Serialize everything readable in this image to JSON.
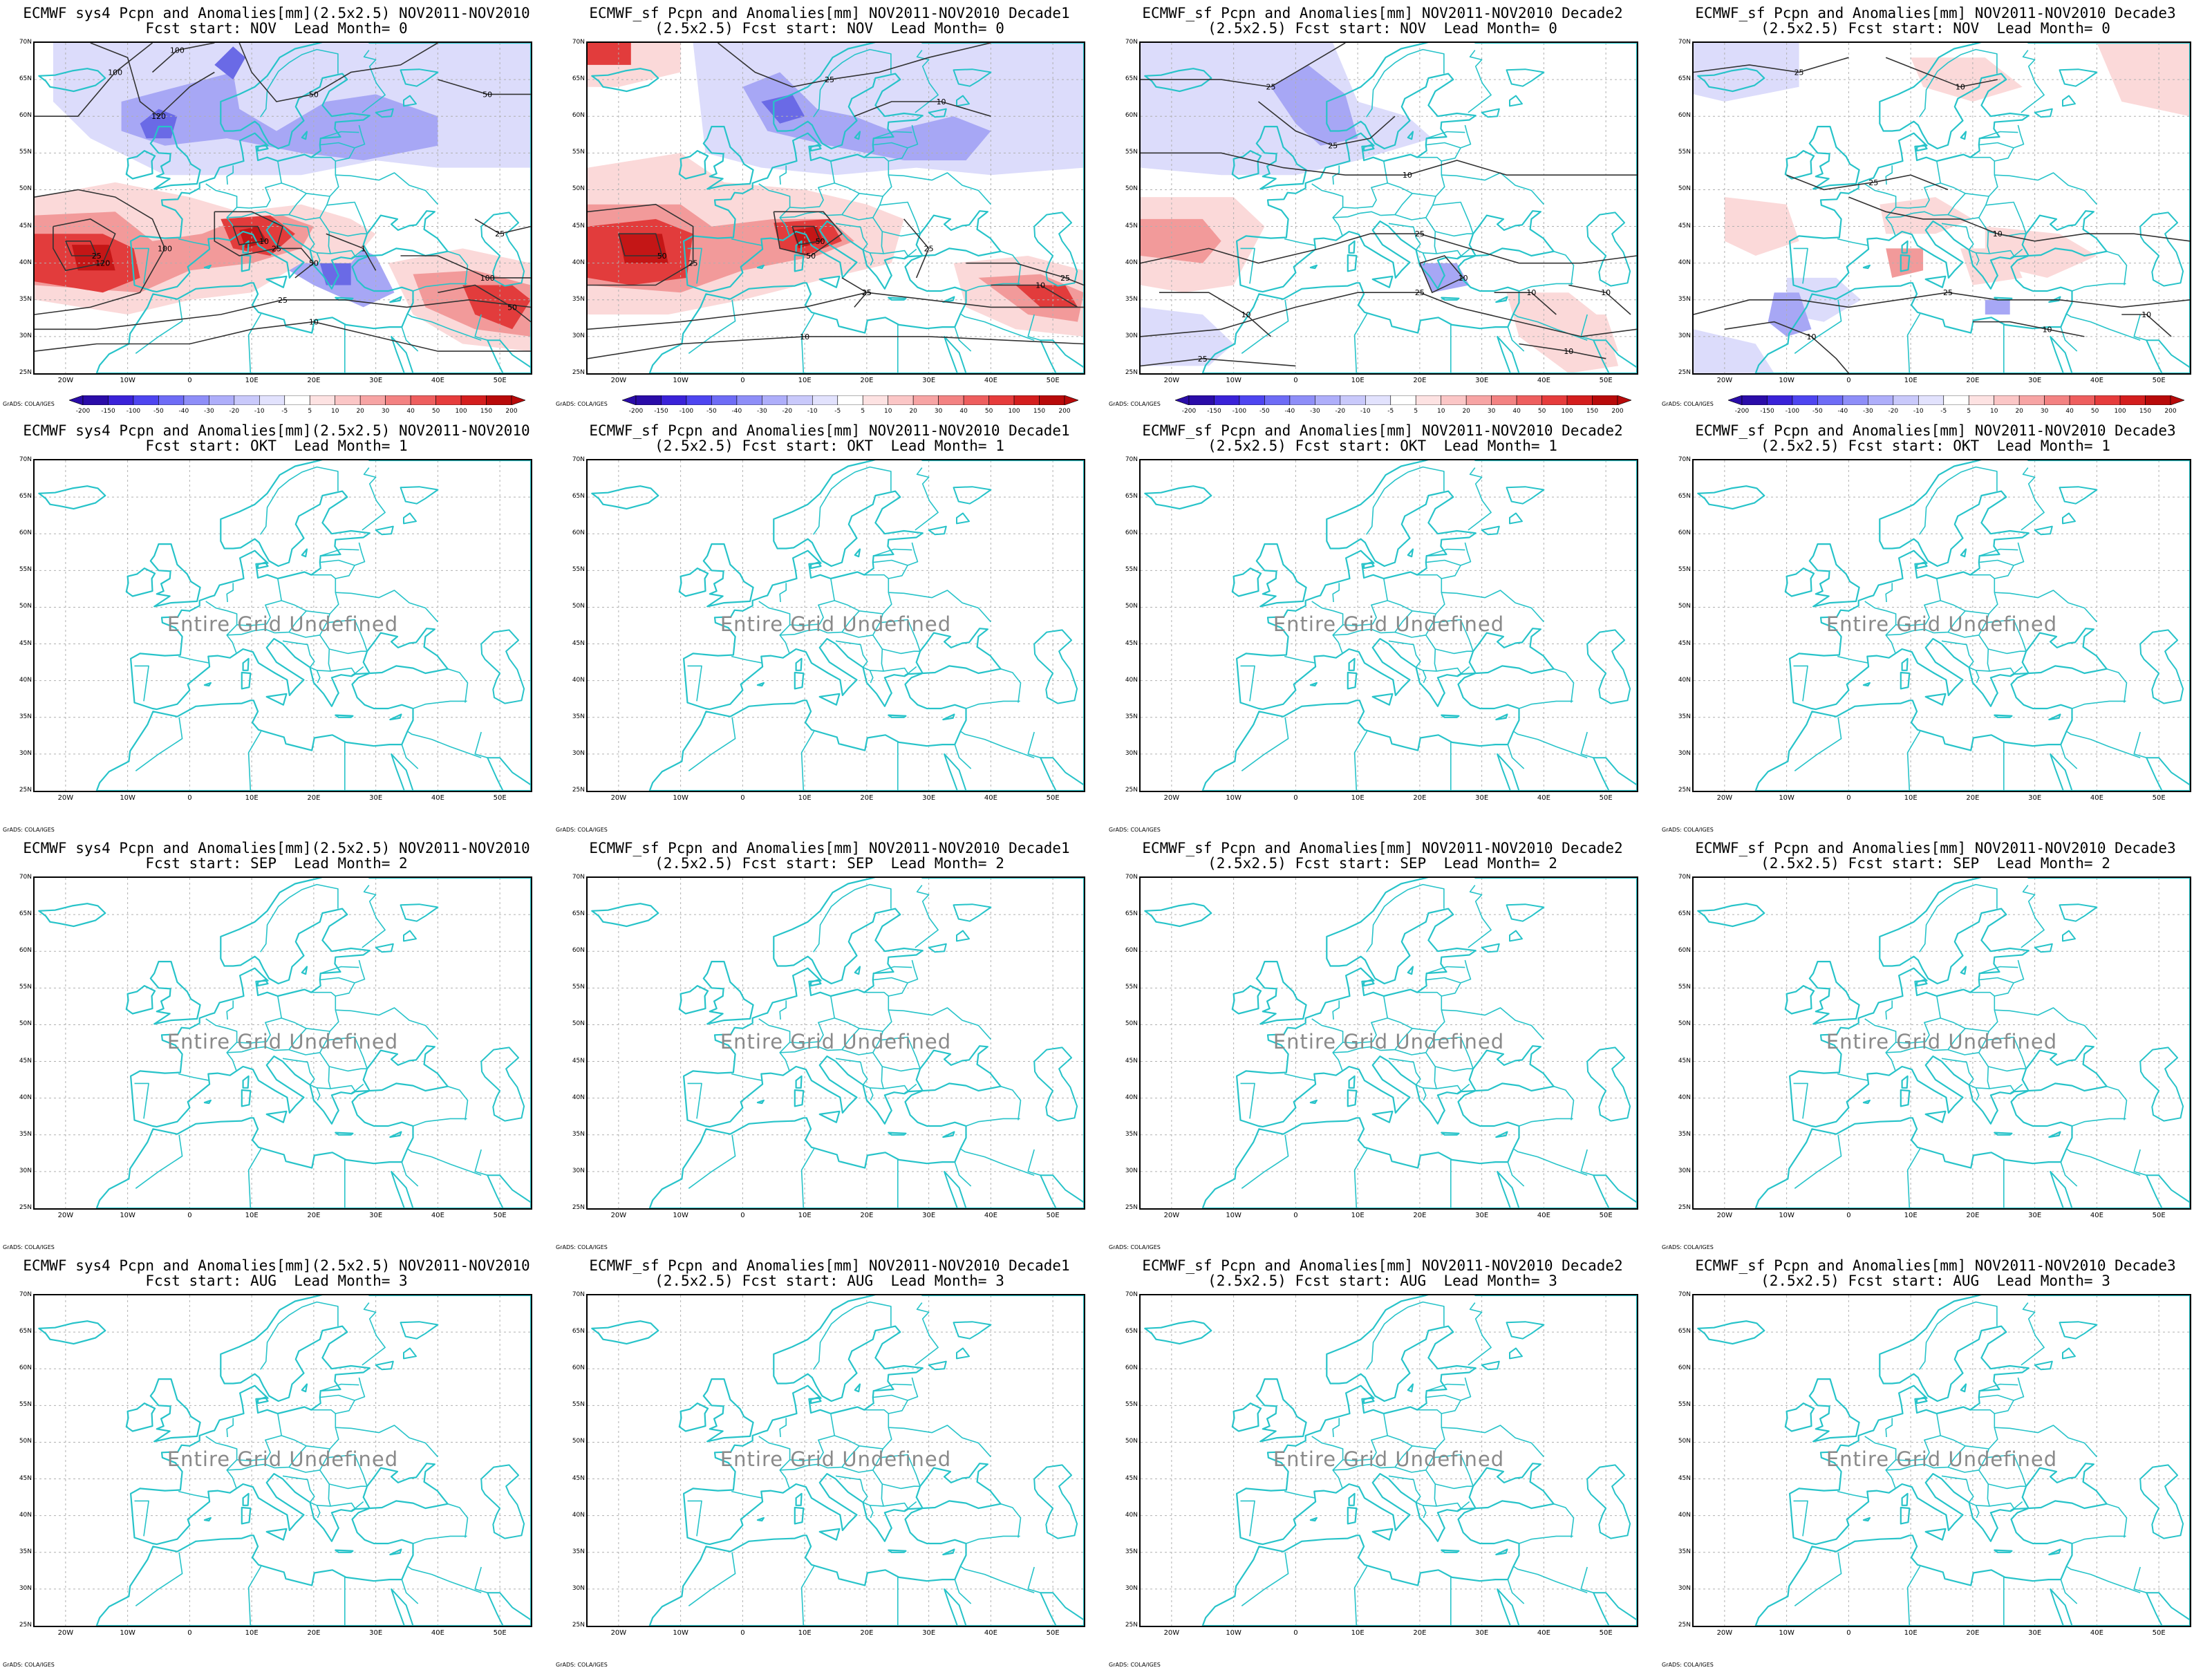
{
  "undefined_text": "Entire Grid Undefined",
  "credit": "GrADS: COLA/IGES",
  "lat_labels": [
    "70N",
    "65N",
    "60N",
    "55N",
    "50N",
    "45N",
    "40N",
    "35N",
    "30N",
    "25N"
  ],
  "lon_labels": [
    "20W",
    "10W",
    "0",
    "10E",
    "20E",
    "30E",
    "40E",
    "50E"
  ],
  "colorbar": {
    "levels": [
      "-200",
      "-150",
      "-100",
      "-50",
      "-40",
      "-30",
      "-20",
      "-10",
      "-5",
      "5",
      "10",
      "20",
      "30",
      "40",
      "50",
      "100",
      "150",
      "200"
    ],
    "colors": [
      "#2a0ca8",
      "#3a22d8",
      "#4e45f0",
      "#6e6cf6",
      "#8e8ef8",
      "#aeaefa",
      "#c9c9fb",
      "#e2e2fd",
      "#ffffff",
      "#fde2e2",
      "#fbc6c6",
      "#f7a4a4",
      "#f38282",
      "#ee5e5e",
      "#e63c3c",
      "#d41e1e",
      "#b80a0a"
    ]
  },
  "colors": {
    "coast": "#27c3c9",
    "grid": "#b0b0b0",
    "contour": "#333333",
    "neg_light": "#dcdcfb",
    "neg_mid": "#a7a7f5",
    "neg_strong": "#6a6ae6",
    "pos_light": "#fbd9d9",
    "pos_mid": "#f29a9a",
    "pos_strong": "#e23c3c",
    "pos_deep": "#c41616"
  },
  "panels": [
    {
      "line1": "ECMWF sys4 Pcpn and Anomalies[mm](2.5x2.5) NOV2011-NOV2010",
      "line2": "Fcst start: NOV  Lead Month= 0",
      "defined": true,
      "variant": 0,
      "contour_labels": [
        "100",
        "120",
        "100",
        "50",
        "50",
        "100",
        "120",
        "25",
        "25",
        "10",
        "50",
        "1",
        "25",
        "10",
        "100",
        "50",
        "25"
      ]
    },
    {
      "line1": "ECMWF_sf Pcpn and Anomalies[mm] NOV2011-NOV2010 Decade1",
      "line2": "(2.5x2.5) Fcst start: NOV  Lead Month= 0",
      "defined": true,
      "variant": 1,
      "contour_labels": [
        "25",
        "10",
        "25",
        "50",
        "50",
        "50",
        "25",
        "10",
        "25",
        "10",
        "25",
        "25"
      ]
    },
    {
      "line1": "ECMWF_sf Pcpn and Anomalies[mm] NOV2011-NOV2010 Decade2",
      "line2": "(2.5x2.5) Fcst start: NOV  Lead Month= 0",
      "defined": true,
      "variant": 2,
      "contour_labels": [
        "25",
        "25",
        "10",
        "25",
        "25",
        "10",
        "10",
        "10",
        "10",
        "25",
        "10"
      ]
    },
    {
      "line1": "ECMWF_sf Pcpn and Anomalies[mm] NOV2011-NOV2010 Decade3",
      "line2": "(2.5x2.5) Fcst start: NOV  Lead Month= 0",
      "defined": true,
      "variant": 3,
      "contour_labels": [
        "25",
        "10",
        "25",
        "10",
        "25",
        "10",
        "10",
        "10"
      ]
    },
    {
      "line1": "ECMWF sys4 Pcpn and Anomalies[mm](2.5x2.5) NOV2011-NOV2010",
      "line2": "Fcst start: OKT  Lead Month= 1",
      "defined": false
    },
    {
      "line1": "ECMWF_sf Pcpn and Anomalies[mm] NOV2011-NOV2010 Decade1",
      "line2": "(2.5x2.5) Fcst start: OKT  Lead Month= 1",
      "defined": false
    },
    {
      "line1": "ECMWF_sf Pcpn and Anomalies[mm] NOV2011-NOV2010 Decade2",
      "line2": "(2.5x2.5) Fcst start: OKT  Lead Month= 1",
      "defined": false
    },
    {
      "line1": "ECMWF_sf Pcpn and Anomalies[mm] NOV2011-NOV2010 Decade3",
      "line2": "(2.5x2.5) Fcst start: OKT  Lead Month= 1",
      "defined": false
    },
    {
      "line1": "ECMWF sys4 Pcpn and Anomalies[mm](2.5x2.5) NOV2011-NOV2010",
      "line2": "Fcst start: SEP  Lead Month= 2",
      "defined": false
    },
    {
      "line1": "ECMWF_sf Pcpn and Anomalies[mm] NOV2011-NOV2010 Decade1",
      "line2": "(2.5x2.5) Fcst start: SEP  Lead Month= 2",
      "defined": false
    },
    {
      "line1": "ECMWF_sf Pcpn and Anomalies[mm] NOV2011-NOV2010 Decade2",
      "line2": "(2.5x2.5) Fcst start: SEP  Lead Month= 2",
      "defined": false
    },
    {
      "line1": "ECMWF_sf Pcpn and Anomalies[mm] NOV2011-NOV2010 Decade3",
      "line2": "(2.5x2.5) Fcst start: SEP  Lead Month= 2",
      "defined": false
    },
    {
      "line1": "ECMWF sys4 Pcpn and Anomalies[mm](2.5x2.5) NOV2011-NOV2010",
      "line2": "Fcst start: AUG  Lead Month= 3",
      "defined": false
    },
    {
      "line1": "ECMWF_sf Pcpn and Anomalies[mm] NOV2011-NOV2010 Decade1",
      "line2": "(2.5x2.5) Fcst start: AUG  Lead Month= 3",
      "defined": false
    },
    {
      "line1": "ECMWF_sf Pcpn and Anomalies[mm] NOV2011-NOV2010 Decade2",
      "line2": "(2.5x2.5) Fcst start: AUG  Lead Month= 3",
      "defined": false
    },
    {
      "line1": "ECMWF_sf Pcpn and Anomalies[mm] NOV2011-NOV2010 Decade3",
      "line2": "(2.5x2.5) Fcst start: AUG  Lead Month= 3",
      "defined": false
    }
  ]
}
